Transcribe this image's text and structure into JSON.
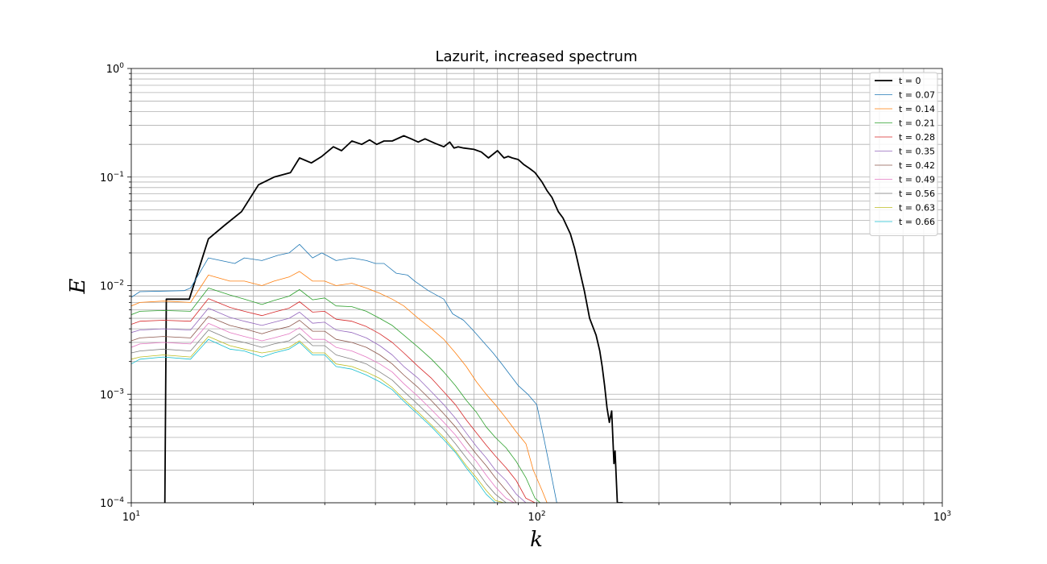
{
  "chart_data": {
    "type": "line",
    "title": "Lazurit, increased spectrum",
    "xlabel": "k",
    "ylabel": "E",
    "x_scale": "log",
    "y_scale": "log",
    "xlim": [
      10,
      1000
    ],
    "ylim": [
      0.0001,
      1
    ],
    "x_ticks": [
      {
        "value": 10,
        "base": "10",
        "exp": "1"
      },
      {
        "value": 100,
        "base": "10",
        "exp": "2"
      },
      {
        "value": 1000,
        "base": "10",
        "exp": "3"
      }
    ],
    "y_ticks": [
      {
        "value": 0.0001,
        "base": "10",
        "exp": "−4"
      },
      {
        "value": 0.001,
        "base": "10",
        "exp": "−3"
      },
      {
        "value": 0.01,
        "base": "10",
        "exp": "−2"
      },
      {
        "value": 0.1,
        "base": "10",
        "exp": "−1"
      },
      {
        "value": 1,
        "base": "10",
        "exp": "0"
      }
    ],
    "grid": "major and minor",
    "legend_position": "upper right",
    "series": [
      {
        "name": "t = 0",
        "color": "#000000",
        "x": [
          12.1,
          12.2,
          13.9,
          15.5,
          17,
          18.7,
          20.6,
          22.5,
          24.7,
          26,
          27.8,
          29.5,
          31.5,
          33,
          35,
          37,
          38.7,
          40.3,
          42,
          44,
          47,
          49,
          51,
          53,
          56,
          59,
          61,
          62.5,
          64,
          66,
          70,
          73,
          76,
          80,
          83,
          85,
          87,
          90,
          93,
          96,
          99,
          103,
          106,
          109,
          113,
          116,
          121,
          124,
          126,
          128,
          131,
          135,
          140,
          143,
          145,
          147,
          149,
          151,
          153,
          155,
          156,
          158,
          159,
          160,
          161,
          162,
          163
        ],
        "y": [
          0.0001,
          0.0075,
          0.0075,
          0.027,
          0.036,
          0.048,
          0.085,
          0.1,
          0.11,
          0.15,
          0.135,
          0.155,
          0.19,
          0.175,
          0.215,
          0.2,
          0.22,
          0.2,
          0.215,
          0.215,
          0.24,
          0.225,
          0.21,
          0.225,
          0.205,
          0.19,
          0.21,
          0.185,
          0.19,
          0.185,
          0.18,
          0.17,
          0.15,
          0.175,
          0.15,
          0.155,
          0.15,
          0.145,
          0.13,
          0.12,
          0.11,
          0.09,
          0.075,
          0.065,
          0.048,
          0.042,
          0.03,
          0.022,
          0.017,
          0.013,
          0.009,
          0.005,
          0.0035,
          0.0025,
          0.0018,
          0.0012,
          0.00075,
          0.00055,
          0.0007,
          0.00023,
          0.0003,
          0.0001,
          0.0001,
          0.0001,
          0.0001,
          0.0001,
          0.0001
        ]
      },
      {
        "name": "t = 0.07",
        "color": "#1f77b4",
        "x": [
          10,
          10.5,
          12,
          13.5,
          14,
          15.5,
          18,
          19,
          21,
          23,
          24.5,
          26,
          28,
          29.5,
          32,
          35,
          38,
          40,
          42,
          45,
          48,
          50,
          54,
          59,
          62,
          66,
          70,
          74,
          78,
          82,
          86,
          90,
          95,
          100,
          104,
          108,
          112
        ],
        "y": [
          0.0078,
          0.0088,
          0.0089,
          0.009,
          0.0095,
          0.018,
          0.016,
          0.018,
          0.017,
          0.019,
          0.02,
          0.024,
          0.018,
          0.02,
          0.017,
          0.018,
          0.017,
          0.016,
          0.016,
          0.013,
          0.0125,
          0.011,
          0.009,
          0.0075,
          0.0055,
          0.0048,
          0.0038,
          0.003,
          0.0024,
          0.0019,
          0.0015,
          0.0012,
          0.001,
          0.0008,
          0.0004,
          0.0002,
          0.0001
        ]
      },
      {
        "name": "t = 0.14",
        "color": "#ff7f0e",
        "x": [
          10,
          10.5,
          12,
          14,
          15.5,
          17.5,
          19,
          21,
          22.5,
          24.5,
          26,
          28,
          30,
          32,
          35,
          38,
          41,
          44,
          47,
          51,
          55,
          59,
          63,
          67,
          71,
          75,
          79,
          84,
          89,
          94,
          98,
          103,
          106
        ],
        "y": [
          0.0065,
          0.007,
          0.0072,
          0.007,
          0.0125,
          0.011,
          0.011,
          0.01,
          0.011,
          0.012,
          0.0135,
          0.011,
          0.011,
          0.01,
          0.0105,
          0.0095,
          0.0085,
          0.0075,
          0.0065,
          0.005,
          0.004,
          0.0032,
          0.0024,
          0.0018,
          0.0013,
          0.001,
          0.0008,
          0.0006,
          0.00045,
          0.00035,
          0.0002,
          0.00013,
          0.0001
        ]
      },
      {
        "name": "t = 0.21",
        "color": "#2ca02c",
        "x": [
          10,
          10.5,
          12,
          14,
          15.5,
          17.5,
          19,
          21,
          22.5,
          24.5,
          26,
          28,
          30,
          32,
          35,
          38,
          41,
          44,
          47,
          51,
          55,
          59,
          63,
          67,
          71,
          75,
          79,
          84,
          89,
          94,
          99,
          102
        ],
        "y": [
          0.0054,
          0.0058,
          0.0059,
          0.0058,
          0.0095,
          0.0082,
          0.0075,
          0.0067,
          0.0073,
          0.008,
          0.0092,
          0.0074,
          0.0077,
          0.0065,
          0.0064,
          0.0058,
          0.005,
          0.0043,
          0.0035,
          0.0027,
          0.0021,
          0.0016,
          0.0012,
          0.00088,
          0.00068,
          0.0005,
          0.0004,
          0.00032,
          0.00024,
          0.00017,
          0.00011,
          0.0001
        ]
      },
      {
        "name": "t = 0.28",
        "color": "#d62728",
        "x": [
          10,
          10.5,
          12,
          14,
          15.5,
          17.5,
          19,
          21,
          22.5,
          24.5,
          26,
          28,
          30,
          32,
          35,
          38,
          41,
          44,
          47,
          51,
          55,
          59,
          63,
          67,
          71,
          75,
          79,
          84,
          89,
          94,
          99
        ],
        "y": [
          0.0044,
          0.0047,
          0.0048,
          0.0047,
          0.0076,
          0.0063,
          0.0058,
          0.0053,
          0.0057,
          0.0062,
          0.0071,
          0.0057,
          0.0058,
          0.0049,
          0.0047,
          0.0042,
          0.0036,
          0.003,
          0.0024,
          0.0018,
          0.0014,
          0.00105,
          0.0008,
          0.00058,
          0.00044,
          0.00034,
          0.00027,
          0.00021,
          0.00016,
          0.00011,
          0.0001
        ]
      },
      {
        "name": "t = 0.35",
        "color": "#9467bd",
        "x": [
          10,
          10.5,
          12,
          14,
          15.5,
          17.5,
          19,
          21,
          22.5,
          24.5,
          26,
          28,
          30,
          32,
          35,
          38,
          41,
          44,
          47,
          51,
          55,
          59,
          63,
          67,
          71,
          75,
          79,
          84,
          89,
          94,
          97
        ],
        "y": [
          0.0037,
          0.0039,
          0.004,
          0.0039,
          0.0062,
          0.0051,
          0.0047,
          0.0043,
          0.0046,
          0.005,
          0.0057,
          0.0045,
          0.0046,
          0.0039,
          0.0037,
          0.0033,
          0.0028,
          0.0023,
          0.0018,
          0.0014,
          0.00105,
          0.0008,
          0.0006,
          0.00044,
          0.00033,
          0.00026,
          0.0002,
          0.00016,
          0.00012,
          0.0001,
          0.0001
        ]
      },
      {
        "name": "t = 0.42",
        "color": "#8c564b",
        "x": [
          10,
          10.5,
          12,
          14,
          15.5,
          17.5,
          19,
          21,
          22.5,
          24.5,
          26,
          28,
          30,
          32,
          35,
          38,
          41,
          44,
          47,
          51,
          55,
          59,
          63,
          67,
          71,
          75,
          79,
          84,
          89,
          93
        ],
        "y": [
          0.0031,
          0.0033,
          0.0034,
          0.0033,
          0.0052,
          0.0043,
          0.004,
          0.0036,
          0.0039,
          0.0042,
          0.0048,
          0.0038,
          0.0038,
          0.0032,
          0.003,
          0.0027,
          0.0023,
          0.0019,
          0.0015,
          0.00115,
          0.00087,
          0.00066,
          0.0005,
          0.00037,
          0.00028,
          0.00022,
          0.00017,
          0.00013,
          0.0001,
          0.0001
        ]
      },
      {
        "name": "t = 0.49",
        "color": "#e377c2",
        "x": [
          10,
          10.5,
          12,
          14,
          15.5,
          17.5,
          19,
          21,
          22.5,
          24.5,
          26,
          28,
          30,
          32,
          35,
          38,
          41,
          44,
          47,
          51,
          55,
          59,
          63,
          67,
          71,
          75,
          79,
          84,
          88,
          91
        ],
        "y": [
          0.0027,
          0.0029,
          0.003,
          0.0029,
          0.0045,
          0.0037,
          0.0034,
          0.0031,
          0.0033,
          0.0036,
          0.0041,
          0.0032,
          0.0032,
          0.0027,
          0.0025,
          0.0022,
          0.0019,
          0.0016,
          0.00125,
          0.00095,
          0.00072,
          0.00055,
          0.00042,
          0.00031,
          0.00024,
          0.00018,
          0.00014,
          0.00011,
          0.0001,
          0.0001
        ]
      },
      {
        "name": "t = 0.56",
        "color": "#7f7f7f",
        "x": [
          10,
          10.5,
          12,
          14,
          15.5,
          17.5,
          19,
          21,
          22.5,
          24.5,
          26,
          28,
          30,
          32,
          35,
          38,
          41,
          44,
          47,
          51,
          55,
          59,
          63,
          67,
          71,
          75,
          79,
          84,
          88
        ],
        "y": [
          0.0024,
          0.0025,
          0.0026,
          0.0025,
          0.0039,
          0.0032,
          0.003,
          0.0027,
          0.0029,
          0.0031,
          0.0036,
          0.0028,
          0.0028,
          0.0023,
          0.0021,
          0.0019,
          0.0016,
          0.00135,
          0.00106,
          0.0008,
          0.00061,
          0.00047,
          0.00035,
          0.00026,
          0.0002,
          0.00015,
          0.00012,
          0.0001,
          0.0001
        ]
      },
      {
        "name": "t = 0.63",
        "color": "#bcbd22",
        "x": [
          10,
          10.5,
          12,
          14,
          15.5,
          17.5,
          19,
          21,
          22.5,
          24.5,
          26,
          28,
          30,
          32,
          35,
          38,
          41,
          44,
          47,
          51,
          55,
          59,
          63,
          67,
          71,
          75,
          79,
          83,
          86
        ],
        "y": [
          0.0021,
          0.0022,
          0.0023,
          0.0022,
          0.0034,
          0.0028,
          0.0026,
          0.0024,
          0.0025,
          0.0027,
          0.0031,
          0.0024,
          0.0024,
          0.0019,
          0.0018,
          0.0016,
          0.0014,
          0.00115,
          0.0009,
          0.00068,
          0.00052,
          0.0004,
          0.0003,
          0.00022,
          0.00017,
          0.00013,
          0.000105,
          0.0001,
          0.0001
        ]
      },
      {
        "name": "t = 0.66",
        "color": "#17becf",
        "x": [
          10,
          10.5,
          12,
          14,
          15.5,
          17.5,
          19,
          21,
          22.5,
          24.5,
          26,
          28,
          30,
          32,
          35,
          38,
          41,
          44,
          47,
          51,
          55,
          59,
          63,
          67,
          71,
          75,
          79,
          83,
          85
        ],
        "y": [
          0.0019,
          0.0021,
          0.0022,
          0.0021,
          0.0032,
          0.0026,
          0.0025,
          0.0022,
          0.0024,
          0.0026,
          0.003,
          0.0023,
          0.0023,
          0.0018,
          0.0017,
          0.0015,
          0.0013,
          0.0011,
          0.00086,
          0.00065,
          0.0005,
          0.00038,
          0.00029,
          0.00021,
          0.00016,
          0.00012,
          0.0001,
          0.0001,
          0.0001
        ]
      }
    ]
  }
}
